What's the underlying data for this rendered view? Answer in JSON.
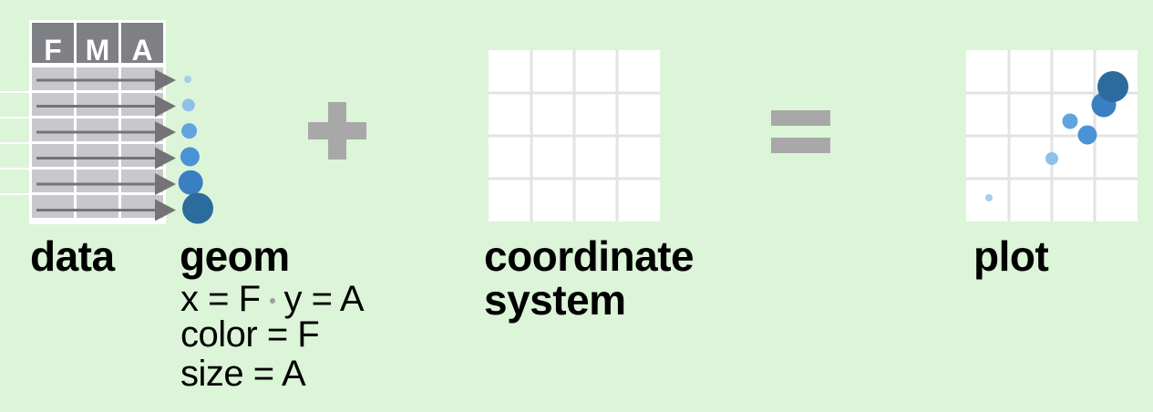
{
  "data_section": {
    "label": "data",
    "columns": [
      "F",
      "M",
      "A"
    ],
    "row_count": 6
  },
  "geom_section": {
    "label": "geom",
    "mapping_x": "x = F",
    "mapping_y": "y = A",
    "mapping_color": "color = F",
    "mapping_size": "size = A"
  },
  "operators": {
    "plus": "+",
    "equals": "="
  },
  "coordinate_section": {
    "label_line1": "coordinate",
    "label_line2": "system",
    "grid_rows": 4,
    "grid_cols": 4
  },
  "plot_section": {
    "label": "plot"
  },
  "colors": {
    "background": "#dcf5d8",
    "header_gray": "#7f7f86",
    "cell_gray": "#c8c8cc",
    "arrow_gray": "#737378",
    "operator_gray": "#a8a8a8",
    "grid_line": "#e3e3e3",
    "point_colors": [
      "#a7cdea",
      "#8fc0e8",
      "#5fa4dc",
      "#4a93d6",
      "#3a7fc2",
      "#2c6b9e"
    ]
  }
}
